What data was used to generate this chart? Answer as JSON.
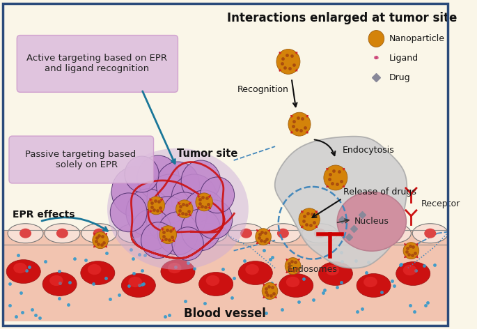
{
  "bg_color": "#faf6e8",
  "border_color": "#2a4a7a",
  "title_text": "Interactions enlarged at tumor site",
  "title_fontsize": 12,
  "title_fontweight": "bold",
  "blood_vessel_label": "Blood vessel",
  "blood_vessel_color": "#f2c4b0",
  "tumor_label": "Tumor site",
  "label_active": "Active targeting based on EPR\nand ligand recognition",
  "label_passive": "Passive targeting based\n    solely on EPR",
  "label_epr": "EPR effects",
  "label_recognition": "Recognition",
  "label_endocytosis": "Endocytosis",
  "label_release": "Release of drugs",
  "label_endosomes": "Endosomes",
  "label_nucleus": "Nucleus",
  "label_receptor": "Receptor",
  "legend_nanoparticle": "Nanoparticle",
  "legend_ligand": "Ligand",
  "legend_drug": "Drug",
  "nanoparticle_color": "#d4830a",
  "ligand_color": "#cc2222",
  "drug_color": "#888899",
  "arrow_color": "#1a7799",
  "dashed_color": "#4488bb",
  "active_box_color": "#ddbddd",
  "passive_box_color": "#ddbddd",
  "cell_fill": "#d0d0d0",
  "nucleus_fill": "#d090a0",
  "tumor_fill": "#c090cc",
  "tumor_bg_fill": "#c8a8d8",
  "blood_cell_color": "#cc1111",
  "endo_cell_fill": "#f8e0d5",
  "red_vessel_color": "#cc1111",
  "receptor_color": "#cc1111",
  "tbar_color": "#cc0000"
}
